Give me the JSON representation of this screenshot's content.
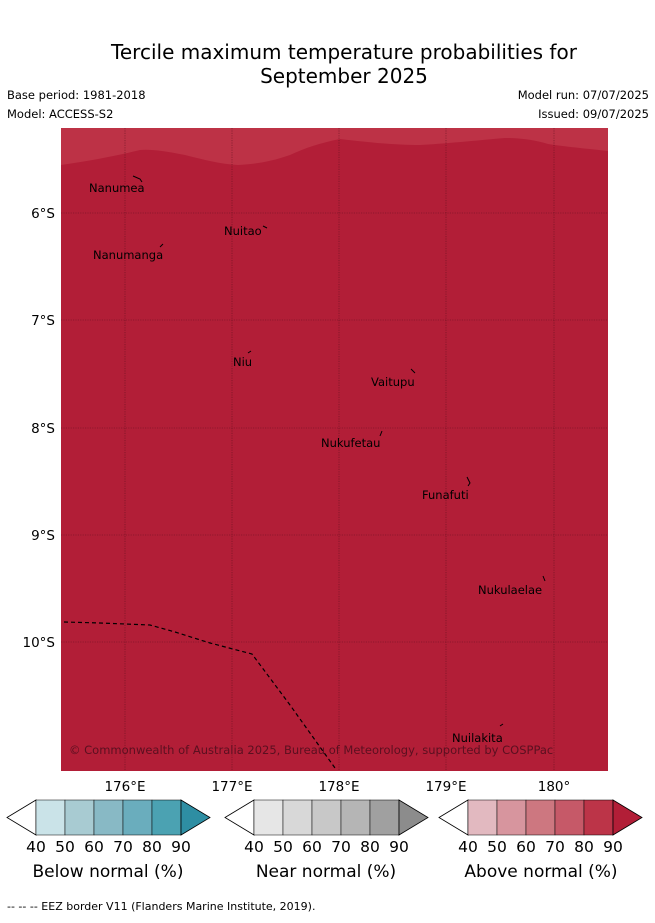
{
  "title_line1": "Tercile maximum temperature probabilities for",
  "title_line2": "September 2025",
  "meta": {
    "base_period": "Base period: 1981-2018",
    "model": "Model: ACCESS-S2",
    "model_run": "Model run: 07/07/2025",
    "issued": "Issued: 09/07/2025"
  },
  "map": {
    "lat_labels": [
      "6°S",
      "7°S",
      "8°S",
      "9°S",
      "10°S"
    ],
    "lon_labels": [
      "176°E",
      "177°E",
      "178°E",
      "179°E",
      "180°"
    ],
    "places": [
      "Nanumea",
      "Nuitao",
      "Nanumanga",
      "Niu",
      "Vaitupu",
      "Nukufetau",
      "Funafuti",
      "Nukulaelae",
      "Nuilakita"
    ],
    "copyright": "© Commonwealth of Australia 2025, Bureau of Meteorology, supported by COSPPac",
    "fill_color": "#b21e37",
    "top_band_color": "#bd3246",
    "above_normal_probability_percent": 90
  },
  "legends": [
    {
      "label": "Below normal (%)",
      "ticks": [
        "40",
        "50",
        "60",
        "70",
        "80",
        "90"
      ],
      "colors": [
        "#ffffff",
        "#cae3e8",
        "#a8cbd2",
        "#88b9c5",
        "#6aadbd",
        "#4ba2b2",
        "#2e8ea3"
      ]
    },
    {
      "label": "Near normal (%)",
      "ticks": [
        "40",
        "50",
        "60",
        "70",
        "80",
        "90"
      ],
      "colors": [
        "#ffffff",
        "#e6e6e6",
        "#d8d8d8",
        "#c8c8c8",
        "#b5b5b5",
        "#a0a0a0",
        "#8c8c8c"
      ]
    },
    {
      "label": "Above normal (%)",
      "ticks": [
        "40",
        "50",
        "60",
        "70",
        "80",
        "90"
      ],
      "colors": [
        "#ffffff",
        "#e2b9c0",
        "#d7959e",
        "#cd7780",
        "#c65968",
        "#bc3448",
        "#b21e37"
      ]
    }
  ],
  "footer": "-- -- -- EEZ border V11 (Flanders Marine Institute, 2019)."
}
